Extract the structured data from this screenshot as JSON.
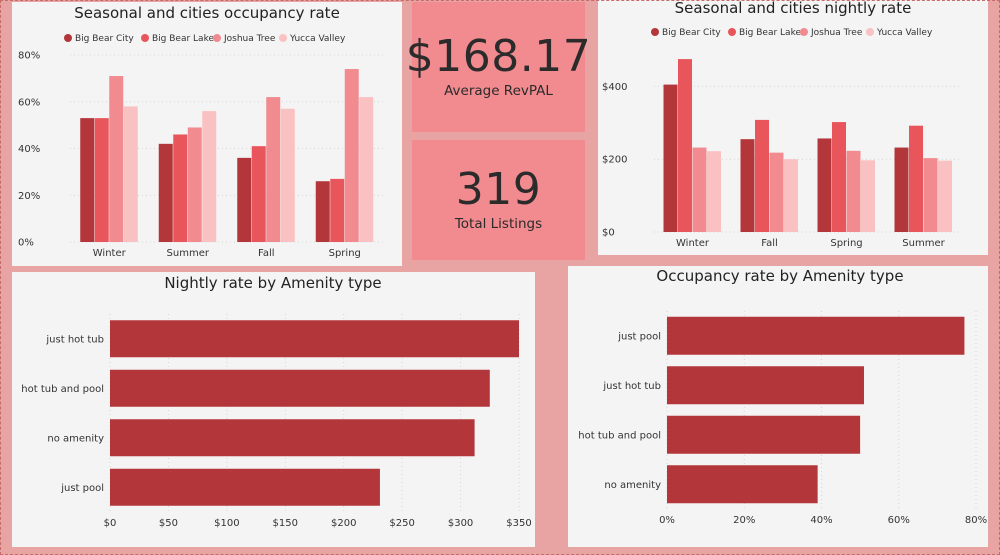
{
  "kpis": {
    "revpal": {
      "value": "$168.17",
      "label": "Average RevPAL"
    },
    "listings": {
      "value": "319",
      "label": "Total Listings"
    }
  },
  "colors": {
    "page_bg": "#e8a3a3",
    "panel_bg": "#f4f4f4",
    "kpi_bg": "#f28b8f",
    "bar_single": "#b3373a",
    "series": [
      "#b3373a",
      "#e8555b",
      "#f28b90",
      "#f9c1c2"
    ]
  },
  "chart_data": [
    {
      "id": "occupancy_season_city",
      "type": "bar",
      "title": "Seasonal and cities occupancy rate",
      "categories": [
        "Winter",
        "Summer",
        "Fall",
        "Spring"
      ],
      "series": [
        {
          "name": "Big Bear City",
          "values": [
            53,
            42,
            36,
            26
          ]
        },
        {
          "name": "Big Bear Lake",
          "values": [
            53,
            46,
            41,
            27
          ]
        },
        {
          "name": "Joshua Tree",
          "values": [
            71,
            49,
            62,
            74
          ]
        },
        {
          "name": "Yucca Valley",
          "values": [
            58,
            56,
            57,
            62
          ]
        }
      ],
      "ylim": [
        0,
        80
      ],
      "yticks": [
        0,
        20,
        40,
        60,
        80
      ],
      "ytick_labels": [
        "0%",
        "20%",
        "40%",
        "60%",
        "80%"
      ],
      "legend": "top",
      "grid": true
    },
    {
      "id": "nightly_rate_season_city",
      "type": "bar",
      "title": "Seasonal and cities nightly rate",
      "categories": [
        "Winter",
        "Fall",
        "Spring",
        "Summer"
      ],
      "series": [
        {
          "name": "Big Bear City",
          "values": [
            405,
            255,
            257,
            232
          ]
        },
        {
          "name": "Big Bear Lake",
          "values": [
            475,
            308,
            302,
            292
          ]
        },
        {
          "name": "Joshua Tree",
          "values": [
            232,
            218,
            223,
            203
          ]
        },
        {
          "name": "Yucca Valley",
          "values": [
            222,
            200,
            197,
            196
          ]
        }
      ],
      "ylim": [
        0,
        500
      ],
      "yticks": [
        0,
        200,
        400
      ],
      "ytick_labels": [
        "$0",
        "$200",
        "$400"
      ],
      "legend": "top",
      "grid": true
    },
    {
      "id": "nightly_rate_amenity",
      "type": "bar",
      "orientation": "horizontal",
      "title": "Nightly rate by Amenity type",
      "categories": [
        "just hot tub",
        "hot tub and pool",
        "no amenity",
        "just pool"
      ],
      "values": [
        350,
        325,
        312,
        231
      ],
      "xlim": [
        0,
        350
      ],
      "xticks": [
        0,
        50,
        100,
        150,
        200,
        250,
        300,
        350
      ],
      "xtick_labels": [
        "$0",
        "$50",
        "$100",
        "$150",
        "$200",
        "$250",
        "$300",
        "$350"
      ],
      "grid": true
    },
    {
      "id": "occupancy_amenity",
      "type": "bar",
      "orientation": "horizontal",
      "title": "Occupancy rate by Amenity type",
      "categories": [
        "just pool",
        "just hot tub",
        "hot tub and pool",
        "no amenity"
      ],
      "values": [
        77,
        51,
        50,
        39
      ],
      "xlim": [
        0,
        80
      ],
      "xticks": [
        0,
        20,
        40,
        60,
        80
      ],
      "xtick_labels": [
        "0%",
        "20%",
        "40%",
        "60%",
        "80%"
      ],
      "grid": true
    }
  ]
}
